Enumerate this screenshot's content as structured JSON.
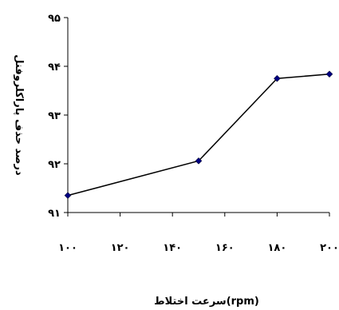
{
  "chart_data": {
    "type": "line",
    "title": "",
    "xlabel": "سرعت اختلاط(rpm)",
    "ylabel": "درصد حذف پاراكلروفنل",
    "xlim": [
      100,
      200
    ],
    "ylim": [
      91,
      95
    ],
    "x_ticks": [
      {
        "value": 100,
        "label": "۱۰۰"
      },
      {
        "value": 120,
        "label": "۱۲۰"
      },
      {
        "value": 140,
        "label": "۱۴۰"
      },
      {
        "value": 160,
        "label": "۱۶۰"
      },
      {
        "value": 180,
        "label": "۱۸۰"
      },
      {
        "value": 200,
        "label": "۲۰۰"
      }
    ],
    "y_ticks": [
      {
        "value": 91,
        "label": "۹۱"
      },
      {
        "value": 92,
        "label": "۹۲"
      },
      {
        "value": 93,
        "label": "۹۳"
      },
      {
        "value": 94,
        "label": "۹۴"
      },
      {
        "value": 95,
        "label": "۹۵"
      }
    ],
    "grid": false,
    "series": [
      {
        "color": "#000080",
        "x": [
          100,
          150,
          180,
          200
        ],
        "y": [
          91.35,
          92.06,
          93.75,
          93.84
        ]
      }
    ]
  }
}
